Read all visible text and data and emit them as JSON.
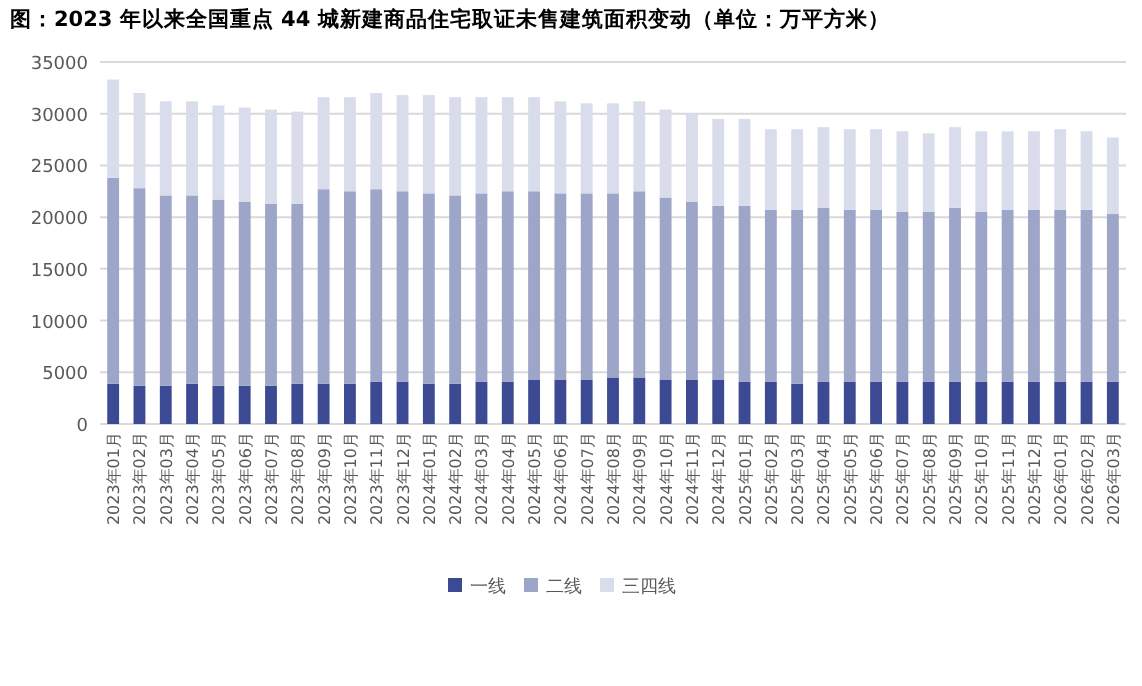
{
  "chart_data": {
    "type": "bar",
    "stacked": true,
    "title": "图：2023 年以来全国重点 44 城新建商品住宅取证未售建筑面积变动（单位：万平方米）",
    "categories": [
      "2023年01月",
      "2023年02月",
      "2023年03月",
      "2023年04月",
      "2023年05月",
      "2023年06月",
      "2023年07月",
      "2023年08月",
      "2023年09月",
      "2023年10月",
      "2023年11月",
      "2023年12月",
      "2024年01月",
      "2024年02月",
      "2024年03月",
      "2024年04月",
      "2024年05月",
      "2024年06月",
      "2024年07月",
      "2024年08月",
      "2024年09月",
      "2024年10月",
      "2024年11月",
      "2024年12月",
      "2025年01月",
      "2025年02月",
      "2025年03月",
      "2025年04月",
      "2025年05月",
      "2025年06月",
      "2025年07月",
      "2025年08月",
      "2025年09月",
      "2025年10月",
      "2025年11月",
      "2025年12月",
      "2026年01月",
      "2026年02月",
      "2026年03月"
    ],
    "series": [
      {
        "name": "一线",
        "color": "#3b4a92",
        "values": [
          3900,
          3700,
          3700,
          3900,
          3700,
          3700,
          3700,
          3900,
          3900,
          3900,
          4100,
          4100,
          3900,
          3900,
          4100,
          4100,
          4300,
          4300,
          4300,
          4500,
          4500,
          4300,
          4300,
          4300,
          4100,
          4100,
          3900,
          4100,
          4100,
          4100,
          4100,
          4100,
          4100,
          4100,
          4100,
          4100,
          4100,
          4100,
          4100
        ]
      },
      {
        "name": "二线",
        "color": "#9da5c8",
        "values": [
          19900,
          19100,
          18400,
          18200,
          18000,
          17800,
          17600,
          17400,
          18800,
          18600,
          18600,
          18400,
          18400,
          18200,
          18200,
          18400,
          18200,
          18000,
          18000,
          17800,
          18000,
          17600,
          17200,
          16800,
          17000,
          16600,
          16800,
          16800,
          16600,
          16600,
          16400,
          16400,
          16800,
          16400,
          16600,
          16600,
          16600,
          16600,
          16200
        ]
      },
      {
        "name": "三四线",
        "color": "#d9dcea",
        "values": [
          9500,
          9200,
          9100,
          9100,
          9100,
          9100,
          9100,
          8900,
          8900,
          9100,
          9300,
          9300,
          9500,
          9500,
          9300,
          9100,
          9100,
          8900,
          8700,
          8700,
          8700,
          8500,
          8500,
          8400,
          8400,
          7800,
          7800,
          7800,
          7800,
          7800,
          7800,
          7600,
          7800,
          7800,
          7600,
          7600,
          7800,
          7600,
          7400
        ]
      }
    ],
    "ylim": [
      0,
      35000
    ],
    "yticks": [
      0,
      5000,
      10000,
      15000,
      20000,
      25000,
      30000,
      35000
    ],
    "grid": "y",
    "legend": "bottom"
  }
}
